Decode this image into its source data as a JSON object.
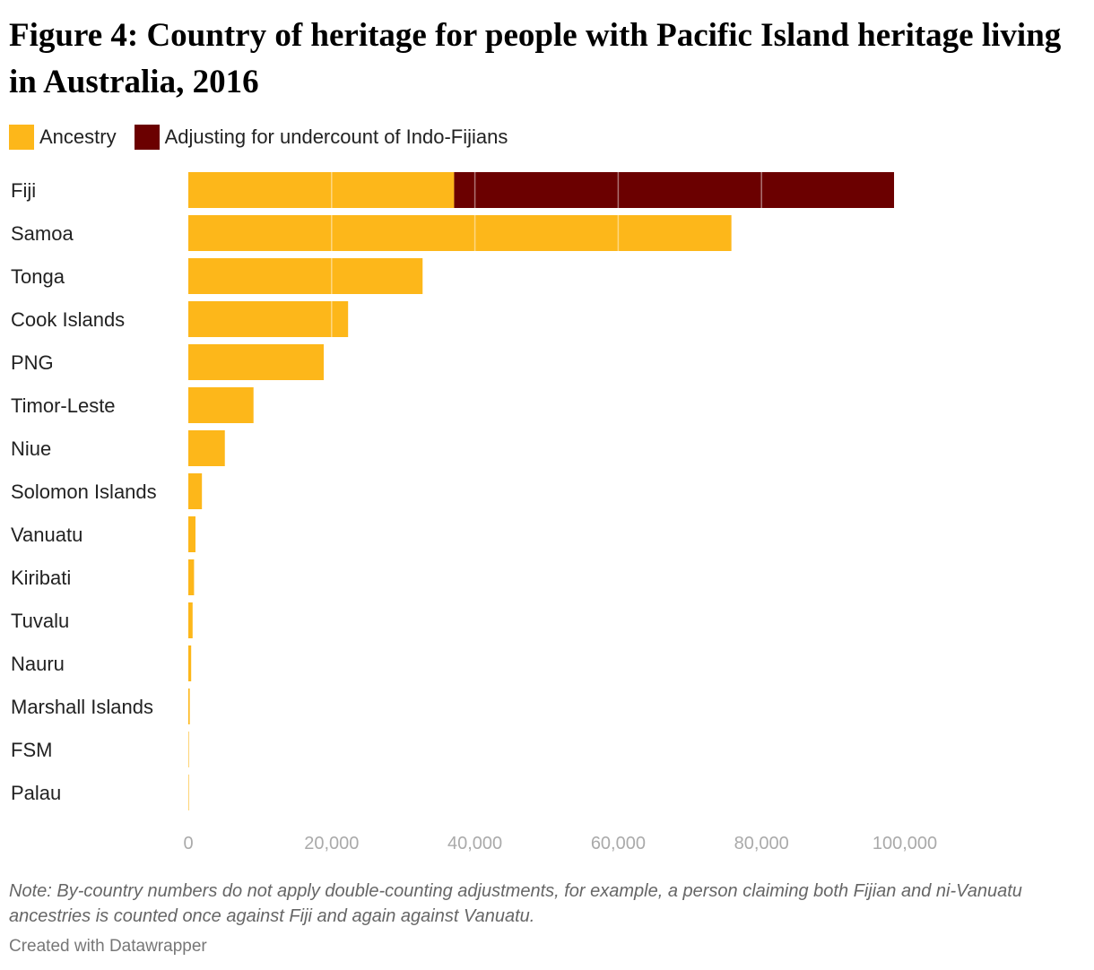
{
  "chart_data": {
    "type": "bar",
    "orientation": "horizontal",
    "stacked": true,
    "title": "Figure 4: Country of heritage for people with Pacific Island heritage living in Australia, 2016",
    "legend_position": "top-left",
    "grid": true,
    "xlim": [
      0,
      100000
    ],
    "x_ticks": [
      0,
      20000,
      40000,
      60000,
      80000,
      100000
    ],
    "x_tick_labels": [
      "0",
      "20,000",
      "40,000",
      "60,000",
      "80,000",
      "100,000"
    ],
    "categories": [
      "Fiji",
      "Samoa",
      "Tonga",
      "Cook Islands",
      "PNG",
      "Timor-Leste",
      "Niue",
      "Solomon Islands",
      "Vanuatu",
      "Kiribati",
      "Tuvalu",
      "Nauru",
      "Marshall Islands",
      "FSM",
      "Palau"
    ],
    "series": [
      {
        "name": "Ancestry",
        "color": "#fdb71a",
        "values": [
          37100,
          75800,
          32700,
          22300,
          18900,
          9100,
          5100,
          1900,
          1000,
          800,
          600,
          400,
          200,
          40,
          20
        ]
      },
      {
        "name": "Adjusting for undercount of Indo-Fijians",
        "color": "#6b0000",
        "values": [
          61400,
          0,
          0,
          0,
          0,
          0,
          0,
          0,
          0,
          0,
          0,
          0,
          0,
          0,
          0
        ]
      }
    ]
  },
  "note": "Note: By-country numbers do not apply double-counting adjustments, for example, a person claiming both Fijian and ni-Vanuatu ancestries is counted once against Fiji and again against Vanuatu.",
  "credit": "Created with Datawrapper"
}
